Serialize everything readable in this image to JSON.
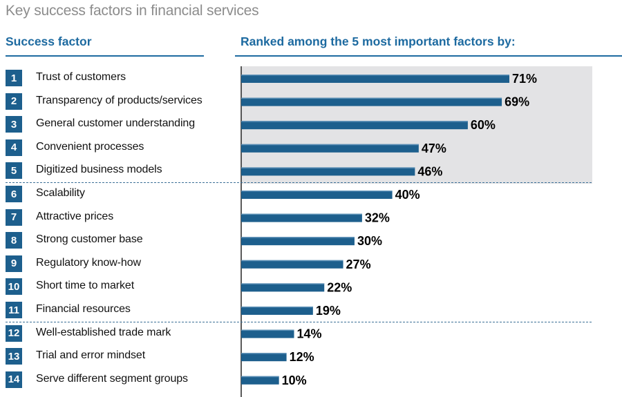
{
  "title": "Key success factors in financial services",
  "headers": {
    "left": "Success factor",
    "right": "Ranked among the 5 most important factors by:"
  },
  "colors": {
    "bar": "#1d5f8d",
    "accent": "#1d6aa0",
    "highlight_bg": "#e3e3e5",
    "badge": "#1d5f8d"
  },
  "factors": [
    {
      "rank": "1",
      "label": "Trust of customers"
    },
    {
      "rank": "2",
      "label": "Transparency of products/services"
    },
    {
      "rank": "3",
      "label": "General customer understanding"
    },
    {
      "rank": "4",
      "label": "Convenient processes"
    },
    {
      "rank": "5",
      "label": "Digitized business models"
    },
    {
      "rank": "6",
      "label": "Scalability"
    },
    {
      "rank": "7",
      "label": "Attractive prices"
    },
    {
      "rank": "8",
      "label": "Strong customer base"
    },
    {
      "rank": "9",
      "label": "Regulatory know-how"
    },
    {
      "rank": "10",
      "label": "Short time to market"
    },
    {
      "rank": "11",
      "label": "Financial resources"
    },
    {
      "rank": "12",
      "label": "Well-established trade mark"
    },
    {
      "rank": "13",
      "label": "Trial and error mindset"
    },
    {
      "rank": "14",
      "label": "Serve different segment groups"
    }
  ],
  "chart_data": {
    "type": "bar",
    "orientation": "horizontal",
    "categories": [
      "Trust of customers",
      "Transparency of products/services",
      "General customer understanding",
      "Convenient processes",
      "Digitized business models",
      "Scalability",
      "Attractive prices",
      "Strong customer base",
      "Regulatory know-how",
      "Short time to market",
      "Financial resources",
      "Well-established trade mark",
      "Trial and error mindset",
      "Serve different segment groups"
    ],
    "values": [
      71,
      69,
      60,
      47,
      46,
      40,
      32,
      30,
      27,
      22,
      19,
      14,
      12,
      10
    ],
    "data_labels": [
      "71%",
      "69%",
      "60%",
      "47%",
      "46%",
      "40%",
      "32%",
      "30%",
      "27%",
      "22%",
      "19%",
      "14%",
      "12%",
      "10%"
    ],
    "unit": "%",
    "xlim": [
      0,
      100
    ],
    "highlighted_top": 5,
    "group_breaks_after": [
      5,
      11
    ],
    "grid": false,
    "legend": "none"
  }
}
